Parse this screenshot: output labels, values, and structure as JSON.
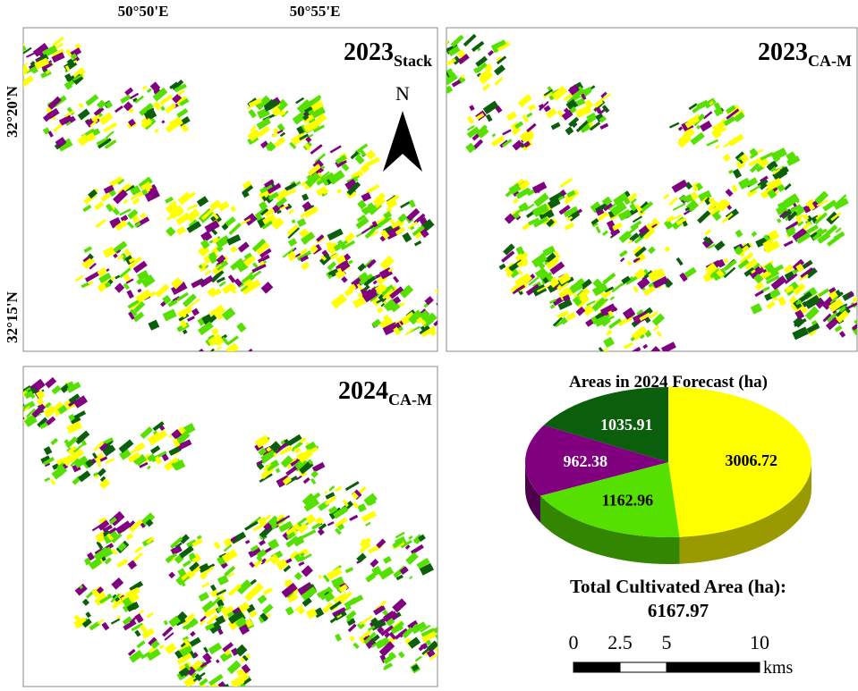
{
  "coordinates": {
    "longitude": [
      "50°50'E",
      "50°55'E"
    ],
    "latitude": [
      "32°20'N",
      "32°15'N"
    ]
  },
  "maps": [
    {
      "year": "2023",
      "subscript": "Stack"
    },
    {
      "year": "2023",
      "subscript": "CA-M"
    },
    {
      "year": "2024",
      "subscript": "CA-M"
    }
  ],
  "north_label": "N",
  "chart_data": {
    "type": "pie",
    "title": "Areas in 2024 Forecast (ha)",
    "values": [
      3006.72,
      1162.96,
      962.38,
      1035.91
    ],
    "colors": [
      "#ffff00",
      "#55e000",
      "#800080",
      "#0b5e0b"
    ]
  },
  "total": {
    "label": "Total Cultivated Area (ha):",
    "value": 6167.97
  },
  "scale_bar": {
    "ticks": [
      0,
      2.5,
      5,
      10
    ],
    "unit": "kms"
  }
}
